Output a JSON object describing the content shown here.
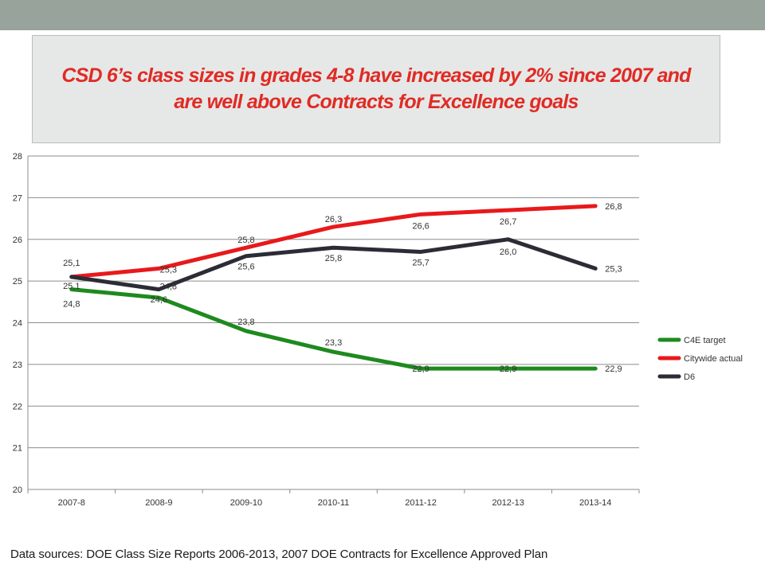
{
  "title": {
    "line1": "CSD 6’s class sizes in grades 4-8 have increased by 2% since 2007 and",
    "line2": "are well above Contracts for Excellence goals"
  },
  "source": "Data sources: DOE Class Size Reports 2006-2013, 2007 DOE Contracts for Excellence Approved Plan",
  "chart_data": {
    "type": "line",
    "title": "CSD 6’s class sizes in grades 4-8 have increased by 2% since 2007 and are well above Contracts for Excellence goals",
    "xlabel": "",
    "ylabel": "",
    "categories": [
      "2007-8",
      "2008-9",
      "2009-10",
      "2010-11",
      "2011-12",
      "2012-13",
      "2013-14"
    ],
    "ylim": [
      20,
      28
    ],
    "yticks": [
      20,
      21,
      22,
      23,
      24,
      25,
      26,
      27,
      28
    ],
    "grid": true,
    "legend_position": "right",
    "series": [
      {
        "name": "C4E target",
        "color": "#1e8a1e",
        "values": [
          24.8,
          24.6,
          23.8,
          23.3,
          22.9,
          22.9,
          22.9
        ],
        "labels": [
          "24,8",
          "24,6",
          "23,8",
          "23,3",
          "22,9",
          "22,9",
          "22,9"
        ]
      },
      {
        "name": "Citywide actual",
        "color": "#e8191b",
        "values": [
          25.1,
          25.3,
          25.8,
          26.3,
          26.6,
          26.7,
          26.8
        ],
        "labels": [
          "25,1",
          "25,3",
          "25,8",
          "26,3",
          "26,6",
          "26,7",
          "26,8"
        ]
      },
      {
        "name": "D6",
        "color": "#2b2c36",
        "values": [
          25.1,
          24.8,
          25.6,
          25.8,
          25.7,
          26.0,
          25.3
        ],
        "labels": [
          "25,1",
          "24,8",
          "25,6",
          "25,8",
          "25,7",
          "26,0",
          "25,3"
        ]
      }
    ]
  }
}
